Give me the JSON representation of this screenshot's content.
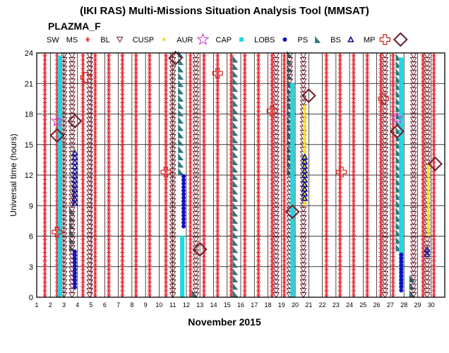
{
  "chart_data": {
    "type": "scatter",
    "title": "(IKI RAS) Multi-Missions Situation Analysis Tool (MMSAT)",
    "subtitle": "PLAZMA_F",
    "xlabel": "November 2015",
    "ylabel": "Universal time (hours)",
    "xlim": [
      1,
      31
    ],
    "ylim": [
      0,
      24
    ],
    "x_ticks": [
      1,
      2,
      3,
      4,
      5,
      6,
      7,
      8,
      9,
      10,
      11,
      12,
      13,
      14,
      15,
      16,
      17,
      18,
      19,
      20,
      21,
      22,
      23,
      24,
      25,
      26,
      27,
      28,
      29,
      30
    ],
    "x_tick_labels": [
      "1",
      "2",
      "3",
      "4",
      "5",
      "6",
      "7",
      "8",
      "9",
      "10",
      "11",
      "12",
      "13",
      "14",
      "15",
      "16",
      "17",
      "18",
      "19",
      "20",
      "21",
      "22",
      "23",
      "24",
      "25",
      "26",
      "27",
      "28",
      "29",
      "30"
    ],
    "y_ticks": [
      0,
      3,
      6,
      9,
      12,
      15,
      18,
      21,
      24
    ],
    "y_tick_labels": [
      "0",
      "3",
      "6",
      "9",
      "12",
      "15",
      "18",
      "21",
      "24"
    ],
    "grid": true,
    "legend_placement": "top",
    "legend": [
      {
        "name": "SW",
        "marker": "none",
        "color": "#000000"
      },
      {
        "name": "MS",
        "marker": "asterisk",
        "color": "#e8202a"
      },
      {
        "name": "BL",
        "marker": "triangle-down",
        "color": "#6b1e2a"
      },
      {
        "name": "CUSP",
        "marker": "circle-small",
        "color": "#f5e12a"
      },
      {
        "name": "AUR",
        "marker": "star",
        "color": "#d040d0"
      },
      {
        "name": "CAP",
        "marker": "square",
        "color": "#20d8e0"
      },
      {
        "name": "LOBS",
        "marker": "circle",
        "color": "#1010c0"
      },
      {
        "name": "PS",
        "marker": "triangle-shaded",
        "color": "#2a7a80"
      },
      {
        "name": "BS",
        "marker": "triangle-up",
        "color": "#101090"
      },
      {
        "name": "MP",
        "marker": "cross",
        "color": "#d02020"
      },
      {
        "name": "",
        "marker": "diamond",
        "color": "#6b1e2a"
      }
    ],
    "series": [
      {
        "name": "MS",
        "columns": [
          {
            "x": 1.6,
            "y": [
              0,
              24
            ]
          },
          {
            "x": 2.5,
            "y": [
              0,
              24
            ]
          },
          {
            "x": 4.4,
            "y": [
              0,
              24
            ]
          },
          {
            "x": 5.3,
            "y": [
              0,
              24
            ]
          },
          {
            "x": 6.3,
            "y": [
              0,
              24
            ]
          },
          {
            "x": 7.3,
            "y": [
              0,
              24
            ]
          },
          {
            "x": 8.3,
            "y": [
              0,
              24
            ]
          },
          {
            "x": 9.3,
            "y": [
              0,
              24
            ]
          },
          {
            "x": 10.5,
            "y": [
              0,
              24
            ]
          },
          {
            "x": 12.3,
            "y": [
              0,
              24
            ]
          },
          {
            "x": 13.3,
            "y": [
              0,
              24
            ]
          },
          {
            "x": 14.3,
            "y": [
              0,
              24
            ]
          },
          {
            "x": 15.3,
            "y": [
              0,
              24
            ]
          },
          {
            "x": 16.3,
            "y": [
              0,
              24
            ]
          },
          {
            "x": 17.3,
            "y": [
              0,
              24
            ]
          },
          {
            "x": 18.3,
            "y": [
              0,
              24
            ]
          },
          {
            "x": 19.2,
            "y": [
              0,
              24
            ]
          },
          {
            "x": 22.3,
            "y": [
              0,
              24
            ]
          },
          {
            "x": 23.3,
            "y": [
              0,
              24
            ]
          },
          {
            "x": 24.3,
            "y": [
              0,
              24
            ]
          },
          {
            "x": 25.3,
            "y": [
              0,
              24
            ]
          },
          {
            "x": 26.3,
            "y": [
              0,
              24
            ]
          },
          {
            "x": 27.2,
            "y": [
              0,
              24
            ]
          },
          {
            "x": 30.2,
            "y": [
              0,
              24
            ]
          },
          {
            "x": 29.4,
            "y": [
              0,
              24
            ]
          }
        ]
      },
      {
        "name": "BL",
        "columns": [
          {
            "x": 3.0,
            "y": [
              0,
              24
            ]
          },
          {
            "x": 3.6,
            "y": [
              0,
              24
            ]
          },
          {
            "x": 4.9,
            "y": [
              0,
              24
            ]
          },
          {
            "x": 12.7,
            "y": [
              0,
              24
            ]
          },
          {
            "x": 11.0,
            "y": [
              0,
              24
            ]
          },
          {
            "x": 18.6,
            "y": [
              0,
              24
            ]
          },
          {
            "x": 19.6,
            "y": [
              0,
              24
            ]
          },
          {
            "x": 20.6,
            "y": [
              0,
              24
            ]
          },
          {
            "x": 26.6,
            "y": [
              0,
              24
            ]
          },
          {
            "x": 28.7,
            "y": [
              0,
              24
            ]
          },
          {
            "x": 29.7,
            "y": [
              0,
              24
            ]
          }
        ]
      },
      {
        "name": "CAP",
        "columns": [
          {
            "x": 2.7,
            "y": [
              0,
              23.6
            ]
          },
          {
            "x": 11.7,
            "y": [
              0,
              6.0
            ]
          },
          {
            "x": 19.8,
            "y": [
              0,
              21.0
            ]
          },
          {
            "x": 27.8,
            "y": [
              1,
              23.6
            ]
          }
        ]
      },
      {
        "name": "CUSP",
        "columns": [
          {
            "x": 20.7,
            "y": [
              9,
              19
            ]
          },
          {
            "x": 29.8,
            "y": [
              6,
              13
            ]
          }
        ]
      },
      {
        "name": "LOBS",
        "columns": [
          {
            "x": 3.8,
            "y": [
              0.8,
              4.5
            ]
          },
          {
            "x": 11.8,
            "y": [
              6.8,
              12.0
            ]
          },
          {
            "x": 27.8,
            "y": [
              0.5,
              4.5
            ]
          }
        ]
      },
      {
        "name": "BS",
        "columns": [
          {
            "x": 3.8,
            "y": [
              9,
              14.5
            ]
          },
          {
            "x": 20.7,
            "y": [
              9.5,
              14
            ]
          },
          {
            "x": 29.7,
            "y": [
              4,
              5
            ]
          }
        ]
      },
      {
        "name": "PS",
        "columns": [
          {
            "x": 3.6,
            "y": [
              4.5,
              8.8
            ]
          },
          {
            "x": 11.6,
            "y": [
              12,
              24
            ]
          },
          {
            "x": 19.6,
            "y": [
              12,
              24
            ]
          },
          {
            "x": 27.6,
            "y": [
              4.5,
              24
            ]
          },
          {
            "x": 12.6,
            "y": [
              0,
              0.8
            ]
          },
          {
            "x": 15.6,
            "y": [
              0,
              24
            ]
          },
          {
            "x": 28.6,
            "y": [
              0,
              2
            ]
          }
        ]
      },
      {
        "name": "AUR",
        "points": [
          {
            "x": 2.5,
            "y": 17.3
          },
          {
            "x": 27.5,
            "y": 17.6
          }
        ]
      },
      {
        "name": "MP",
        "points": [
          {
            "x": 2.5,
            "y": 6.4
          },
          {
            "x": 4.6,
            "y": 21.6
          },
          {
            "x": 10.5,
            "y": 12.3
          },
          {
            "x": 14.3,
            "y": 22.0
          },
          {
            "x": 18.3,
            "y": 18.3
          },
          {
            "x": 23.4,
            "y": 12.3
          },
          {
            "x": 26.5,
            "y": 19.5
          }
        ]
      },
      {
        "name": "Diamond",
        "points": [
          {
            "x": 2.5,
            "y": 15.9
          },
          {
            "x": 3.8,
            "y": 17.3
          },
          {
            "x": 11.2,
            "y": 23.5
          },
          {
            "x": 13.0,
            "y": 4.7
          },
          {
            "x": 19.8,
            "y": 8.4
          },
          {
            "x": 21.0,
            "y": 19.8
          },
          {
            "x": 27.5,
            "y": 16.3
          },
          {
            "x": 30.3,
            "y": 13.1
          }
        ]
      }
    ]
  }
}
